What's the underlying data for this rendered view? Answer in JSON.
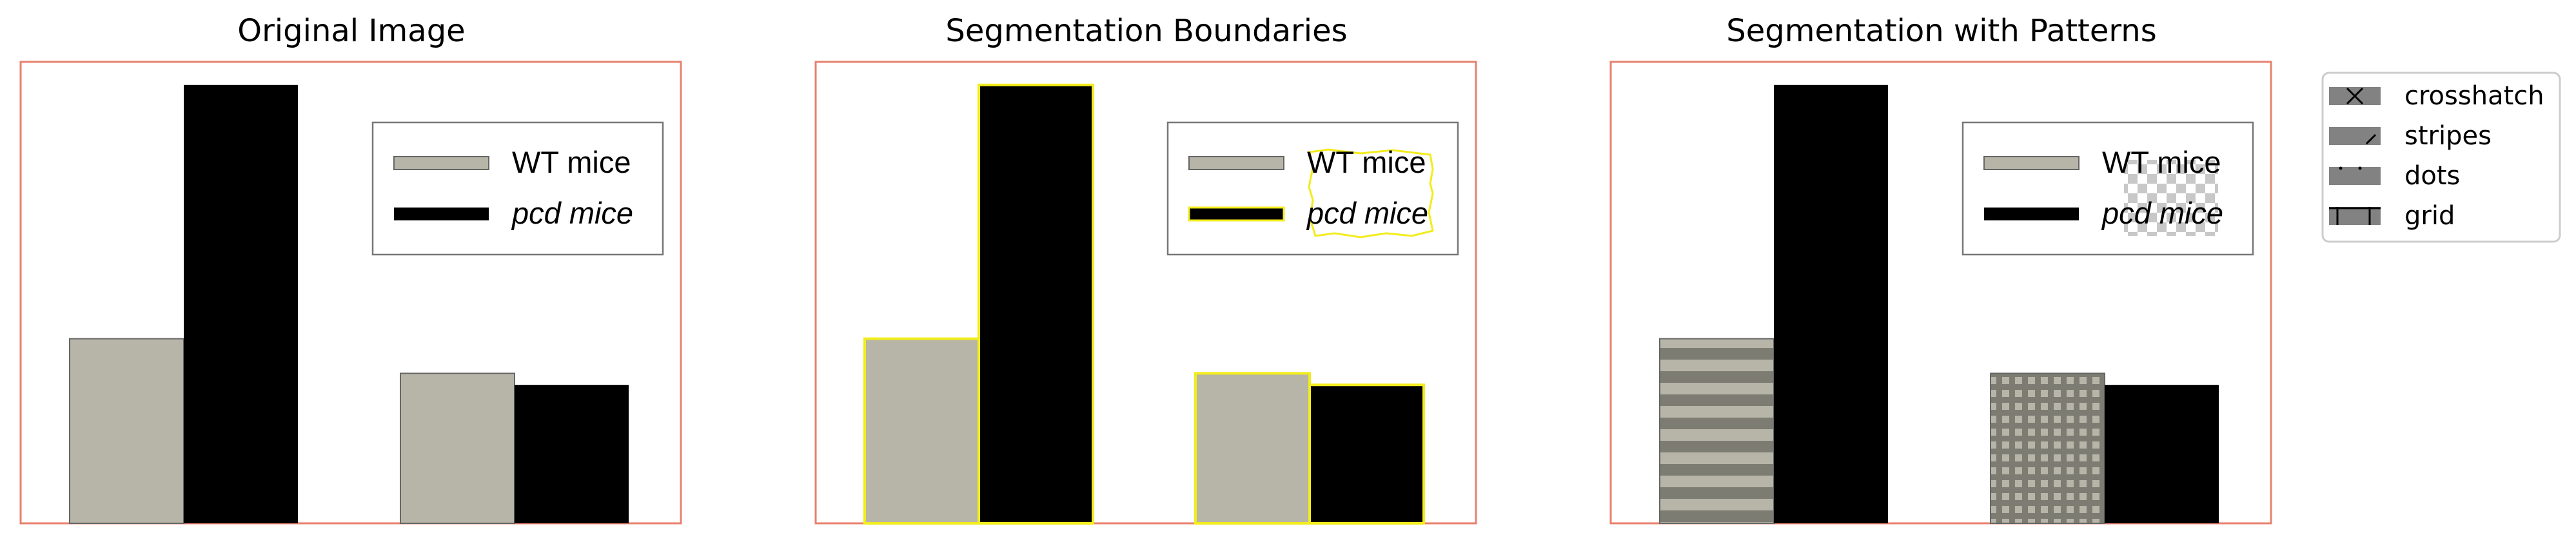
{
  "chart_data": [
    {
      "type": "bar",
      "title": "Original Image",
      "categories": [
        "",
        ""
      ],
      "series": [
        {
          "name": "WT mice",
          "values": [
            40,
            32.5
          ]
        },
        {
          "name": "pcd mice",
          "values": [
            95,
            30
          ]
        }
      ],
      "xlabel": "",
      "ylabel": "",
      "ylim": [
        0,
        100
      ],
      "legend": "upper-right"
    },
    {
      "type": "bar",
      "title": "Segmentation Boundaries",
      "categories": [
        "",
        ""
      ],
      "series": [
        {
          "name": "WT mice",
          "values": [
            40,
            32.5
          ]
        },
        {
          "name": "pcd mice",
          "values": [
            95,
            30
          ]
        }
      ],
      "xlabel": "",
      "ylabel": "",
      "ylim": [
        0,
        100
      ],
      "legend": "upper-right"
    },
    {
      "type": "bar",
      "title": "Segmentation with Patterns",
      "categories": [
        "",
        ""
      ],
      "series": [
        {
          "name": "WT mice",
          "values": [
            40,
            32.5
          ]
        },
        {
          "name": "pcd mice",
          "values": [
            95,
            30
          ]
        }
      ],
      "xlabel": "",
      "ylabel": "",
      "ylim": [
        0,
        100
      ],
      "legend": "upper-right"
    }
  ],
  "pattern_key": {
    "items": [
      {
        "label": "crosshatch"
      },
      {
        "label": "stripes"
      },
      {
        "label": "dots"
      },
      {
        "label": "grid"
      }
    ]
  },
  "colors": {
    "wt": "#b6b5a8",
    "pcd": "#000000",
    "frame": "#e8806e",
    "boundary": "#f2ec1c"
  }
}
